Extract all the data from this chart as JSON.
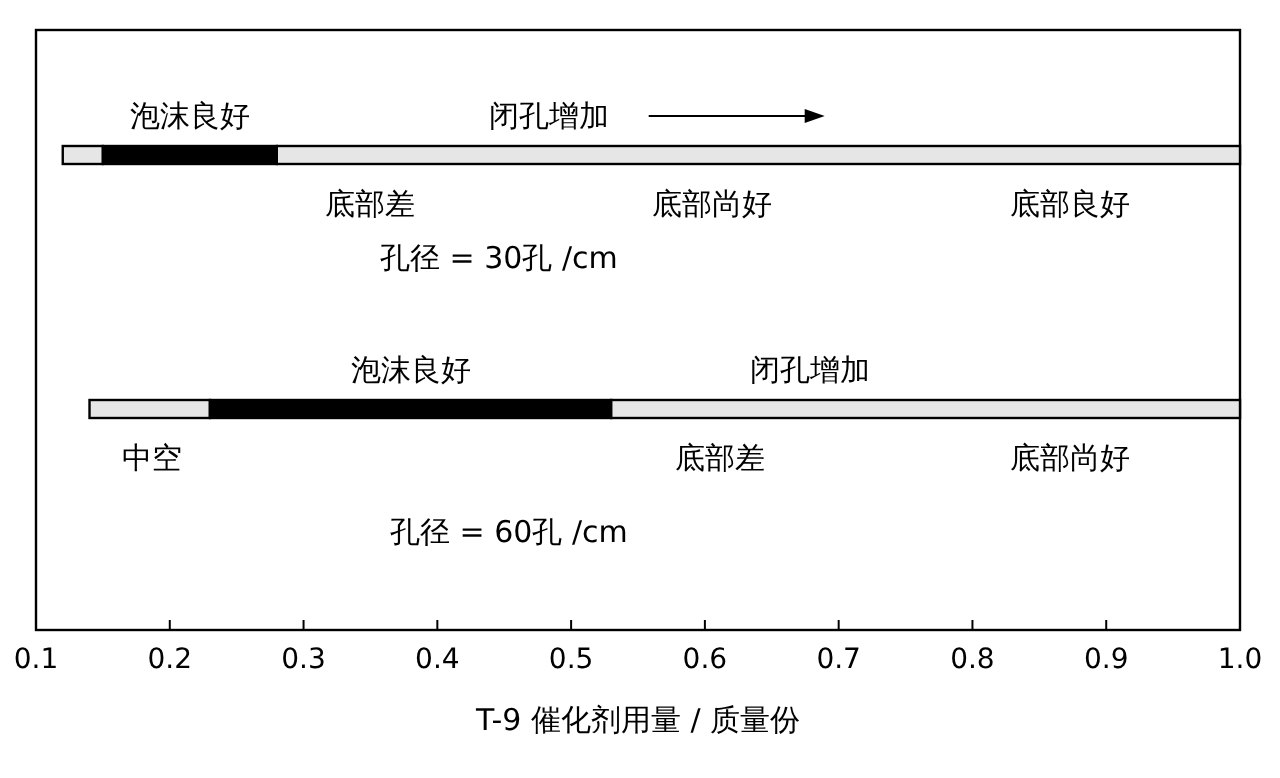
{
  "chart_data": {
    "type": "bar",
    "orientation": "horizontal",
    "categories": [
      null,
      null
    ],
    "stacked": true,
    "xlim": [
      0.1,
      1.0
    ],
    "xlabel": "T-9 催化剂用量 / 质量份",
    "xticks": [
      {
        "value": 0.1,
        "label": "0.1"
      },
      {
        "value": 0.2,
        "label": "0.2"
      },
      {
        "value": 0.3,
        "label": "0.3"
      },
      {
        "value": 0.4,
        "label": "0.4"
      },
      {
        "value": 0.5,
        "label": "0.5"
      },
      {
        "value": 0.6,
        "label": "0.6"
      },
      {
        "value": 0.7,
        "label": "0.7"
      },
      {
        "value": 0.8,
        "label": "0.8"
      },
      {
        "value": 0.9,
        "label": "0.9"
      },
      {
        "value": 1.0,
        "label": "1.0"
      }
    ],
    "series": [
      {
        "color": "#e6e6e6",
        "values": [
          0.03,
          0.09
        ],
        "base": [
          0.12,
          0.14
        ]
      },
      {
        "name": "泡沫良好",
        "color": "#000000",
        "values": [
          0.13,
          0.3
        ]
      },
      {
        "name": "闭孔增加",
        "color": "#e6e6e6",
        "values": [
          0.72,
          0.47
        ]
      }
    ],
    "annotations": [
      "底部差",
      "底部尚好",
      "底部良好",
      "孔径 = 30孔 /cm",
      "中空",
      "底部差",
      "底部尚好",
      "孔径 = 60孔 /cm"
    ]
  }
}
